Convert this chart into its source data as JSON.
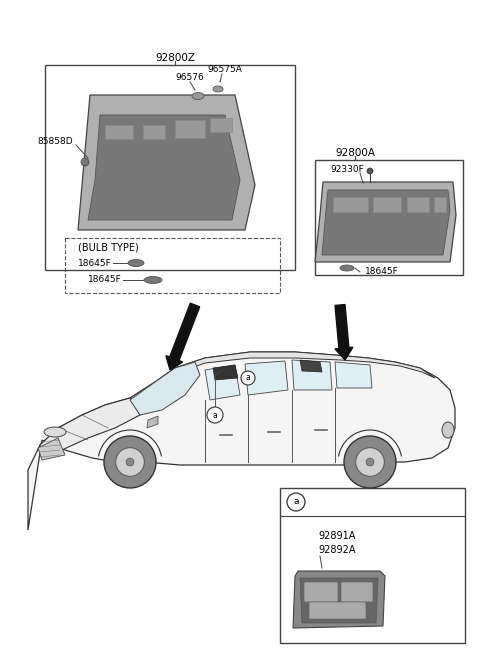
{
  "bg_color": "#ffffff",
  "fig_width": 4.8,
  "fig_height": 6.56,
  "dpi": 100,
  "labels": {
    "main_box_label": "92800Z",
    "bulb_type": "(BULB TYPE)",
    "part_85858D": "85858D",
    "part_96576": "96576",
    "part_96575A": "96575A",
    "part_18645F_1": "18645F",
    "part_18645F_2": "18645F",
    "right_box_label": "92800A",
    "part_92330F": "92330F",
    "part_18645F_3": "18645F",
    "bottom_box_label_a": "a",
    "part_92891A": "92891A",
    "part_92892A": "92892A",
    "circle_a": "a"
  },
  "colors": {
    "box_border": "#444444",
    "text": "#000000",
    "arrow_fill": "#111111",
    "dashed_border": "#555555",
    "part_fill": "#888888",
    "car_stroke": "#333333",
    "lamp_fill": "#aaaaaa",
    "lamp_dark": "#666666"
  }
}
